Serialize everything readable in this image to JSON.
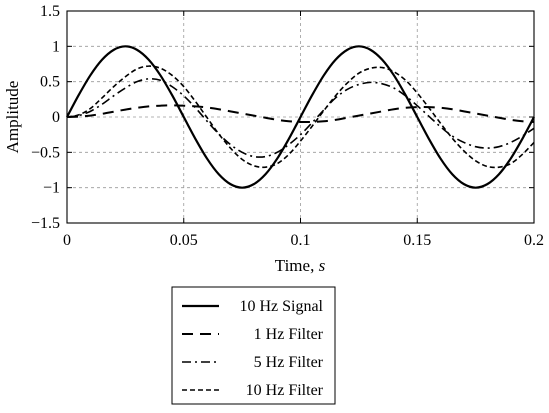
{
  "chart_data": {
    "type": "line",
    "title": "",
    "xlabel_main": "Time, ",
    "xlabel_unit": "s",
    "ylabel": "Amplitude",
    "xlim": [
      0,
      0.2
    ],
    "ylim": [
      -1.5,
      1.5
    ],
    "xticks": [
      0,
      0.05,
      0.1,
      0.15,
      0.2
    ],
    "xtick_labels": [
      "0",
      "0.05",
      "0.1",
      "0.15",
      "0.2"
    ],
    "yticks": [
      -1.5,
      -1,
      -0.5,
      0,
      0.5,
      1,
      1.5
    ],
    "ytick_labels": [
      "−1.5",
      "−1",
      "−0.5",
      "0",
      "0.5",
      "1",
      "1.5"
    ],
    "grid": true,
    "legend_position": "below-chart",
    "series": [
      {
        "name": "10 Hz Signal",
        "style": "solid",
        "x": [
          0,
          0.005,
          0.01,
          0.015,
          0.02,
          0.025,
          0.03,
          0.035,
          0.04,
          0.045,
          0.05,
          0.055,
          0.06,
          0.065,
          0.07,
          0.075,
          0.08,
          0.085,
          0.09,
          0.095,
          0.1,
          0.105,
          0.11,
          0.115,
          0.12,
          0.125,
          0.13,
          0.135,
          0.14,
          0.145,
          0.15,
          0.155,
          0.16,
          0.165,
          0.17,
          0.175,
          0.18,
          0.185,
          0.19,
          0.195,
          0.2
        ],
        "y": [
          0,
          0.31,
          0.59,
          0.81,
          0.95,
          1.0,
          0.95,
          0.81,
          0.59,
          0.31,
          0,
          -0.31,
          -0.59,
          -0.81,
          -0.95,
          -1.0,
          -0.95,
          -0.81,
          -0.59,
          -0.31,
          0,
          0.31,
          0.59,
          0.81,
          0.95,
          1.0,
          0.95,
          0.81,
          0.59,
          0.31,
          0,
          -0.31,
          -0.59,
          -0.81,
          -0.95,
          -1.0,
          -0.95,
          -0.81,
          -0.59,
          -0.31,
          0
        ]
      },
      {
        "name": "1 Hz Filter",
        "style": "dashed",
        "x": [
          0,
          0.005,
          0.01,
          0.015,
          0.02,
          0.025,
          0.03,
          0.035,
          0.04,
          0.045,
          0.05,
          0.055,
          0.06,
          0.065,
          0.07,
          0.075,
          0.08,
          0.085,
          0.09,
          0.095,
          0.1,
          0.105,
          0.11,
          0.115,
          0.12,
          0.125,
          0.13,
          0.135,
          0.14,
          0.145,
          0.15,
          0.155,
          0.16,
          0.165,
          0.17,
          0.175,
          0.18,
          0.185,
          0.19,
          0.195,
          0.2
        ],
        "y": [
          0,
          0.005,
          0.02,
          0.045,
          0.075,
          0.105,
          0.13,
          0.15,
          0.16,
          0.165,
          0.16,
          0.15,
          0.135,
          0.11,
          0.08,
          0.05,
          0.02,
          -0.01,
          -0.04,
          -0.06,
          -0.07,
          -0.07,
          -0.06,
          -0.04,
          -0.01,
          0.02,
          0.05,
          0.08,
          0.11,
          0.13,
          0.14,
          0.14,
          0.13,
          0.11,
          0.08,
          0.05,
          0.02,
          -0.01,
          -0.04,
          -0.06,
          -0.07
        ]
      },
      {
        "name": "5 Hz Filter",
        "style": "dashdot",
        "x": [
          0,
          0.005,
          0.01,
          0.015,
          0.02,
          0.025,
          0.03,
          0.035,
          0.04,
          0.045,
          0.05,
          0.055,
          0.06,
          0.065,
          0.07,
          0.075,
          0.08,
          0.085,
          0.09,
          0.095,
          0.1,
          0.105,
          0.11,
          0.115,
          0.12,
          0.125,
          0.13,
          0.135,
          0.14,
          0.145,
          0.15,
          0.155,
          0.16,
          0.165,
          0.17,
          0.175,
          0.18,
          0.185,
          0.19,
          0.195,
          0.2
        ],
        "y": [
          0,
          0.02,
          0.08,
          0.18,
          0.3,
          0.41,
          0.5,
          0.54,
          0.52,
          0.43,
          0.3,
          0.13,
          -0.06,
          -0.24,
          -0.39,
          -0.5,
          -0.56,
          -0.56,
          -0.5,
          -0.39,
          -0.25,
          -0.08,
          0.1,
          0.27,
          0.39,
          0.46,
          0.49,
          0.47,
          0.41,
          0.3,
          0.16,
          0.01,
          -0.14,
          -0.27,
          -0.36,
          -0.42,
          -0.44,
          -0.42,
          -0.36,
          -0.27,
          -0.16
        ]
      },
      {
        "name": "10 Hz Filter",
        "style": "dotted",
        "x": [
          0,
          0.005,
          0.01,
          0.015,
          0.02,
          0.025,
          0.03,
          0.035,
          0.04,
          0.045,
          0.05,
          0.055,
          0.06,
          0.065,
          0.07,
          0.075,
          0.08,
          0.085,
          0.09,
          0.095,
          0.1,
          0.105,
          0.11,
          0.115,
          0.12,
          0.125,
          0.13,
          0.135,
          0.14,
          0.145,
          0.15,
          0.155,
          0.16,
          0.165,
          0.17,
          0.175,
          0.18,
          0.185,
          0.19,
          0.195,
          0.2
        ],
        "y": [
          0,
          0.03,
          0.12,
          0.27,
          0.43,
          0.57,
          0.68,
          0.72,
          0.69,
          0.59,
          0.43,
          0.22,
          -0.01,
          -0.24,
          -0.44,
          -0.6,
          -0.69,
          -0.71,
          -0.66,
          -0.53,
          -0.34,
          -0.13,
          0.09,
          0.3,
          0.48,
          0.62,
          0.69,
          0.7,
          0.64,
          0.52,
          0.34,
          0.13,
          -0.09,
          -0.3,
          -0.48,
          -0.62,
          -0.7,
          -0.71,
          -0.66,
          -0.53,
          -0.36
        ]
      }
    ]
  }
}
